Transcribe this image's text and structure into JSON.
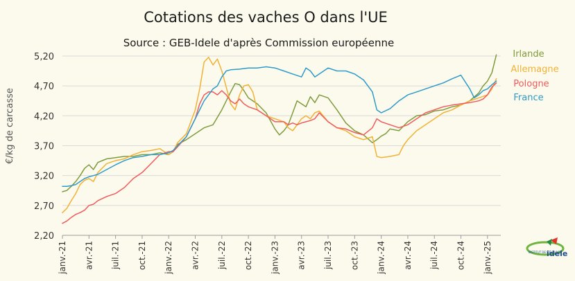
{
  "chart_data": {
    "type": "line",
    "title": "Cotations des vaches O dans l'UE",
    "subtitle": "Source : GEB-Idele d'après Commission européenne",
    "xlabel": "",
    "ylabel": "€/kg de carcasse",
    "ylim": [
      2.2,
      5.35
    ],
    "yticks": [
      "2,20",
      "2,70",
      "3,20",
      "3,70",
      "4,20",
      "4,70",
      "5,20"
    ],
    "ytick_values": [
      2.2,
      2.7,
      3.2,
      3.7,
      4.2,
      4.7,
      5.2
    ],
    "xticks": [
      "janv.-21",
      "avr.-21",
      "juil.-21",
      "oct.-21",
      "janv.-22",
      "avr.-22",
      "juil.-22",
      "oct.-22",
      "janv.-23",
      "avr.-23",
      "juil.-23",
      "oct.-23",
      "janv.-24",
      "avr.-24",
      "juil.-24",
      "oct.-24",
      "janv.-25"
    ],
    "x_unit": "months since janv.-21",
    "grid": "horizontal",
    "legend_position": "right",
    "series": [
      {
        "name": "Irlande",
        "color": "#7f9a3c",
        "points": [
          [
            0,
            2.93
          ],
          [
            0.5,
            2.95
          ],
          [
            1,
            3.02
          ],
          [
            1.5,
            3.1
          ],
          [
            2,
            3.2
          ],
          [
            2.5,
            3.32
          ],
          [
            3,
            3.38
          ],
          [
            3.5,
            3.3
          ],
          [
            4,
            3.42
          ],
          [
            5,
            3.48
          ],
          [
            6,
            3.5
          ],
          [
            7,
            3.52
          ],
          [
            8,
            3.52
          ],
          [
            9,
            3.55
          ],
          [
            10,
            3.55
          ],
          [
            11,
            3.58
          ],
          [
            12,
            3.55
          ],
          [
            12.5,
            3.6
          ],
          [
            13,
            3.72
          ],
          [
            14,
            3.8
          ],
          [
            15,
            3.9
          ],
          [
            16,
            4.0
          ],
          [
            17,
            4.05
          ],
          [
            18,
            4.3
          ],
          [
            19,
            4.6
          ],
          [
            19.5,
            4.74
          ],
          [
            20,
            4.72
          ],
          [
            20.5,
            4.62
          ],
          [
            21,
            4.5
          ],
          [
            22,
            4.4
          ],
          [
            23,
            4.25
          ],
          [
            24,
            3.98
          ],
          [
            24.5,
            3.88
          ],
          [
            25,
            3.95
          ],
          [
            25.5,
            4.05
          ],
          [
            26,
            4.25
          ],
          [
            26.5,
            4.45
          ],
          [
            27,
            4.4
          ],
          [
            27.5,
            4.35
          ],
          [
            28,
            4.52
          ],
          [
            28.5,
            4.42
          ],
          [
            29,
            4.55
          ],
          [
            30,
            4.5
          ],
          [
            31,
            4.3
          ],
          [
            32,
            4.08
          ],
          [
            33,
            3.95
          ],
          [
            34,
            3.88
          ],
          [
            35,
            3.75
          ],
          [
            35.5,
            3.8
          ],
          [
            36,
            3.86
          ],
          [
            36.5,
            3.9
          ],
          [
            37,
            3.98
          ],
          [
            38,
            3.95
          ],
          [
            39,
            4.1
          ],
          [
            40,
            4.2
          ],
          [
            41,
            4.22
          ],
          [
            42,
            4.28
          ],
          [
            43,
            4.3
          ],
          [
            44,
            4.35
          ],
          [
            45,
            4.38
          ],
          [
            46,
            4.45
          ],
          [
            47,
            4.58
          ],
          [
            47.5,
            4.7
          ],
          [
            48,
            4.78
          ],
          [
            48.5,
            4.92
          ],
          [
            49,
            5.22
          ]
        ]
      },
      {
        "name": "Allemagne",
        "color": "#f2b134",
        "points": [
          [
            0,
            2.58
          ],
          [
            0.5,
            2.65
          ],
          [
            1,
            2.78
          ],
          [
            1.5,
            2.9
          ],
          [
            2,
            3.05
          ],
          [
            2.5,
            3.12
          ],
          [
            3,
            3.15
          ],
          [
            3.5,
            3.1
          ],
          [
            4,
            3.25
          ],
          [
            5,
            3.4
          ],
          [
            6,
            3.45
          ],
          [
            7,
            3.48
          ],
          [
            8,
            3.55
          ],
          [
            9,
            3.6
          ],
          [
            10,
            3.62
          ],
          [
            11,
            3.65
          ],
          [
            12,
            3.55
          ],
          [
            12.5,
            3.6
          ],
          [
            13,
            3.75
          ],
          [
            14,
            3.9
          ],
          [
            15,
            4.3
          ],
          [
            15.5,
            4.65
          ],
          [
            16,
            5.1
          ],
          [
            16.5,
            5.18
          ],
          [
            17,
            5.05
          ],
          [
            17.5,
            5.15
          ],
          [
            18,
            4.95
          ],
          [
            18.5,
            4.68
          ],
          [
            19,
            4.4
          ],
          [
            19.5,
            4.3
          ],
          [
            20,
            4.55
          ],
          [
            20.5,
            4.7
          ],
          [
            21,
            4.72
          ],
          [
            21.5,
            4.6
          ],
          [
            22,
            4.3
          ],
          [
            22.5,
            4.25
          ],
          [
            23,
            4.2
          ],
          [
            24,
            4.15
          ],
          [
            25,
            4.1
          ],
          [
            25.5,
            4.0
          ],
          [
            26,
            3.95
          ],
          [
            26.5,
            4.05
          ],
          [
            27,
            4.15
          ],
          [
            27.5,
            4.2
          ],
          [
            28,
            4.15
          ],
          [
            28.5,
            4.25
          ],
          [
            29,
            4.28
          ],
          [
            30,
            4.1
          ],
          [
            31,
            4.0
          ],
          [
            32,
            3.95
          ],
          [
            33,
            3.85
          ],
          [
            34,
            3.8
          ],
          [
            35,
            3.85
          ],
          [
            35.5,
            3.52
          ],
          [
            36,
            3.5
          ],
          [
            37,
            3.52
          ],
          [
            38,
            3.55
          ],
          [
            38.5,
            3.7
          ],
          [
            39,
            3.8
          ],
          [
            40,
            3.95
          ],
          [
            41,
            4.05
          ],
          [
            42,
            4.15
          ],
          [
            43,
            4.25
          ],
          [
            44,
            4.3
          ],
          [
            45,
            4.38
          ],
          [
            46,
            4.45
          ],
          [
            47,
            4.5
          ],
          [
            48,
            4.55
          ],
          [
            48.5,
            4.65
          ],
          [
            49,
            4.82
          ]
        ]
      },
      {
        "name": "Pologne",
        "color": "#f15a5a",
        "points": [
          [
            0,
            2.4
          ],
          [
            0.5,
            2.44
          ],
          [
            1,
            2.5
          ],
          [
            1.5,
            2.55
          ],
          [
            2,
            2.58
          ],
          [
            2.5,
            2.62
          ],
          [
            3,
            2.7
          ],
          [
            3.5,
            2.72
          ],
          [
            4,
            2.78
          ],
          [
            5,
            2.85
          ],
          [
            6,
            2.9
          ],
          [
            7,
            3.0
          ],
          [
            8,
            3.15
          ],
          [
            9,
            3.25
          ],
          [
            10,
            3.4
          ],
          [
            11,
            3.55
          ],
          [
            12,
            3.6
          ],
          [
            12.5,
            3.6
          ],
          [
            13,
            3.68
          ],
          [
            14,
            3.85
          ],
          [
            15,
            4.15
          ],
          [
            15.5,
            4.4
          ],
          [
            16,
            4.55
          ],
          [
            16.5,
            4.6
          ],
          [
            17,
            4.6
          ],
          [
            17.5,
            4.55
          ],
          [
            18,
            4.62
          ],
          [
            18.5,
            4.55
          ],
          [
            19,
            4.45
          ],
          [
            19.5,
            4.4
          ],
          [
            20,
            4.48
          ],
          [
            20.5,
            4.4
          ],
          [
            21,
            4.35
          ],
          [
            22,
            4.3
          ],
          [
            23,
            4.2
          ],
          [
            24,
            4.1
          ],
          [
            25,
            4.1
          ],
          [
            25.5,
            4.05
          ],
          [
            26,
            4.08
          ],
          [
            26.5,
            4.05
          ],
          [
            27,
            4.08
          ],
          [
            27.5,
            4.1
          ],
          [
            28,
            4.12
          ],
          [
            28.5,
            4.15
          ],
          [
            29,
            4.25
          ],
          [
            30,
            4.1
          ],
          [
            31,
            4.0
          ],
          [
            32,
            3.98
          ],
          [
            33,
            3.92
          ],
          [
            34,
            3.88
          ],
          [
            35,
            4.0
          ],
          [
            35.5,
            4.15
          ],
          [
            36,
            4.1
          ],
          [
            37,
            4.05
          ],
          [
            38,
            4.0
          ],
          [
            39,
            4.05
          ],
          [
            40,
            4.15
          ],
          [
            41,
            4.25
          ],
          [
            42,
            4.3
          ],
          [
            43,
            4.35
          ],
          [
            44,
            4.38
          ],
          [
            45,
            4.4
          ],
          [
            46,
            4.42
          ],
          [
            47,
            4.45
          ],
          [
            47.5,
            4.48
          ],
          [
            48,
            4.55
          ],
          [
            48.5,
            4.68
          ],
          [
            49,
            4.75
          ]
        ]
      },
      {
        "name": "France",
        "color": "#2e9ac8",
        "points": [
          [
            0,
            3.02
          ],
          [
            0.5,
            3.02
          ],
          [
            1,
            3.03
          ],
          [
            1.5,
            3.05
          ],
          [
            2,
            3.1
          ],
          [
            2.5,
            3.15
          ],
          [
            3,
            3.18
          ],
          [
            3.5,
            3.2
          ],
          [
            4,
            3.22
          ],
          [
            5,
            3.3
          ],
          [
            6,
            3.38
          ],
          [
            7,
            3.45
          ],
          [
            8,
            3.5
          ],
          [
            9,
            3.52
          ],
          [
            10,
            3.55
          ],
          [
            11,
            3.55
          ],
          [
            12,
            3.58
          ],
          [
            12.5,
            3.62
          ],
          [
            13,
            3.7
          ],
          [
            14,
            3.85
          ],
          [
            15,
            4.15
          ],
          [
            15.5,
            4.3
          ],
          [
            16,
            4.45
          ],
          [
            16.5,
            4.55
          ],
          [
            17,
            4.65
          ],
          [
            17.5,
            4.7
          ],
          [
            18,
            4.85
          ],
          [
            18.5,
            4.95
          ],
          [
            19,
            4.97
          ],
          [
            20,
            4.98
          ],
          [
            21,
            5.0
          ],
          [
            22,
            5.0
          ],
          [
            23,
            5.02
          ],
          [
            24,
            5.0
          ],
          [
            25,
            4.95
          ],
          [
            26,
            4.9
          ],
          [
            27,
            4.85
          ],
          [
            27.5,
            5.0
          ],
          [
            28,
            4.95
          ],
          [
            28.5,
            4.85
          ],
          [
            29,
            4.9
          ],
          [
            30,
            5.0
          ],
          [
            31,
            4.95
          ],
          [
            32,
            4.95
          ],
          [
            33,
            4.9
          ],
          [
            34,
            4.8
          ],
          [
            35,
            4.6
          ],
          [
            35.5,
            4.3
          ],
          [
            36,
            4.25
          ],
          [
            37,
            4.32
          ],
          [
            38,
            4.45
          ],
          [
            39,
            4.55
          ],
          [
            40,
            4.6
          ],
          [
            41,
            4.65
          ],
          [
            42,
            4.7
          ],
          [
            43,
            4.75
          ],
          [
            44,
            4.82
          ],
          [
            45,
            4.88
          ],
          [
            46,
            4.65
          ],
          [
            46.5,
            4.5
          ],
          [
            47,
            4.55
          ],
          [
            47.5,
            4.62
          ],
          [
            48,
            4.65
          ],
          [
            48.5,
            4.72
          ],
          [
            49,
            4.78
          ]
        ]
      }
    ]
  },
  "logo": {
    "text_small": "INSTITUT DE L'ÉLEVAGE",
    "text_main": "idele"
  }
}
